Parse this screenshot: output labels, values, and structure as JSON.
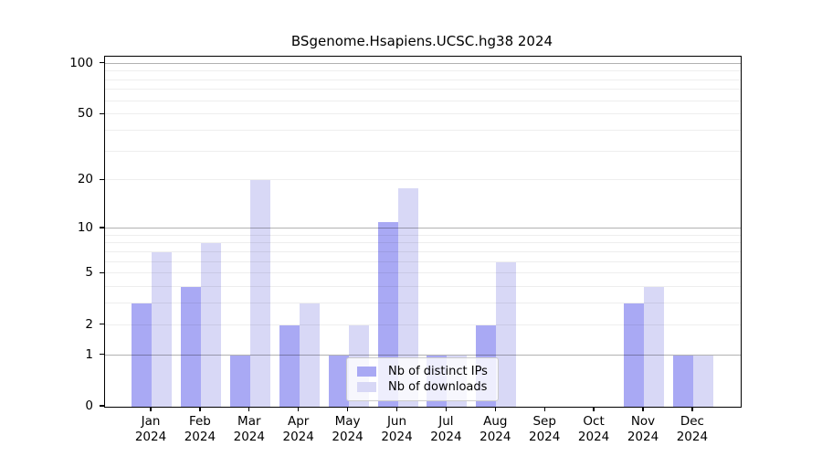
{
  "title": "BSgenome.Hsapiens.UCSC.hg38 2024",
  "chart_data": {
    "type": "bar",
    "title": "BSgenome.Hsapiens.UCSC.hg38 2024",
    "categories": [
      "Jan",
      "Feb",
      "Mar",
      "Apr",
      "May",
      "Jun",
      "Jul",
      "Aug",
      "Sep",
      "Oct",
      "Nov",
      "Dec"
    ],
    "year_label": "2024",
    "series": [
      {
        "name": "Nb of distinct IPs",
        "color": "#a9a9f4",
        "values": [
          3,
          4,
          1,
          2,
          1,
          11,
          1,
          2,
          0,
          0,
          3,
          1
        ]
      },
      {
        "name": "Nb of downloads",
        "color": "#d8d8f6",
        "values": [
          7,
          8,
          20,
          3,
          2,
          18,
          1,
          6,
          0,
          0,
          4,
          1
        ]
      }
    ],
    "xlabel": "",
    "ylabel": "",
    "yscale": "log1p",
    "ylim": [
      0,
      110
    ],
    "yticks": [
      0,
      1,
      2,
      5,
      10,
      20,
      50,
      100
    ],
    "grid": "on",
    "grid_major": [
      1,
      10,
      100
    ],
    "grid_minor": [
      2,
      3,
      4,
      5,
      6,
      7,
      8,
      9,
      20,
      30,
      40,
      50,
      60,
      70,
      80,
      90
    ],
    "legend_position": "lower center",
    "axis_color": "#000000",
    "grid_major_color": "#b3b3b3",
    "grid_minor_color": "#ededed"
  }
}
